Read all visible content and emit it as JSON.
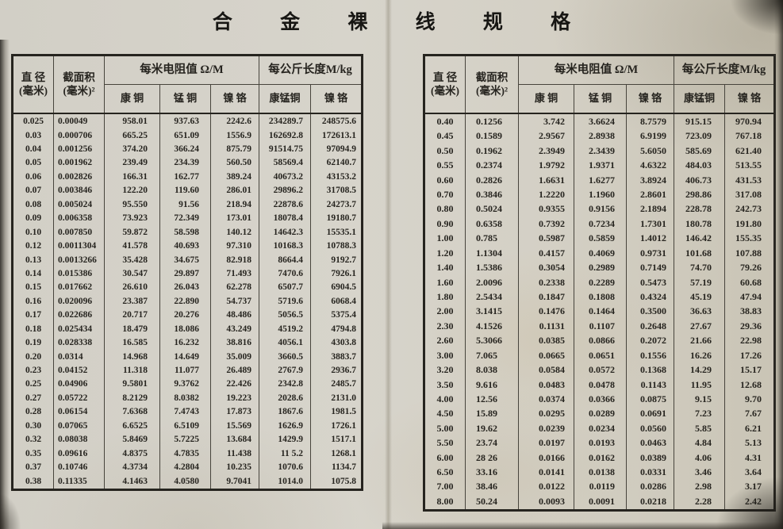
{
  "page_title": "合 金 裸 线 规 格",
  "table_header": {
    "diameter_line1": "直 径",
    "diameter_line2": "(毫米)",
    "area_line1": "截面积",
    "area_line2": "(毫米)²",
    "resistance_group": "每米电阻值 Ω/M",
    "length_group": "每公斤长度M/kg",
    "col_constantan": "康 铜",
    "col_manganin": "锰 铜",
    "col_nichrome": "镍 铬",
    "col_constantan_manganin": "康锰铜",
    "col_nichrome2": "镍 铬"
  },
  "left_table": {
    "rows": [
      [
        "0.025",
        "0.00049",
        "958.01",
        "937.63",
        "2242.6",
        "234289.7",
        "248575.6"
      ],
      [
        "0.03",
        "0.000706",
        "665.25",
        "651.09",
        "1556.9",
        "162692.8",
        "172613.1"
      ],
      [
        "0.04",
        "0.001256",
        "374.20",
        "366.24",
        "875.79",
        "91514.75",
        "97094.9"
      ],
      [
        "0.05",
        "0.001962",
        "239.49",
        "234.39",
        "560.50",
        "58569.4",
        "62140.7"
      ],
      [
        "0.06",
        "0.002826",
        "166.31",
        "162.77",
        "389.24",
        "40673.2",
        "43153.2"
      ],
      [
        "0.07",
        "0.003846",
        "122.20",
        "119.60",
        "286.01",
        "29896.2",
        "31708.5"
      ],
      [
        "0.08",
        "0.005024",
        "95.550",
        "91.56",
        "218.94",
        "22878.6",
        "24273.7"
      ],
      [
        "0.09",
        "0.006358",
        "73.923",
        "72.349",
        "173.01",
        "18078.4",
        "19180.7"
      ],
      [
        "0.10",
        "0.007850",
        "59.872",
        "58.598",
        "140.12",
        "14642.3",
        "15535.1"
      ],
      [
        "0.12",
        "0.0011304",
        "41.578",
        "40.693",
        "97.310",
        "10168.3",
        "10788.3"
      ],
      [
        "0.13",
        "0.0013266",
        "35.428",
        "34.675",
        "82.918",
        "8664.4",
        "9192.7"
      ],
      [
        "0.14",
        "0.015386",
        "30.547",
        "29.897",
        "71.493",
        "7470.6",
        "7926.1"
      ],
      [
        "0.15",
        "0.017662",
        "26.610",
        "26.043",
        "62.278",
        "6507.7",
        "6904.5"
      ],
      [
        "0.16",
        "0.020096",
        "23.387",
        "22.890",
        "54.737",
        "5719.6",
        "6068.4"
      ],
      [
        "0.17",
        "0.022686",
        "20.717",
        "20.276",
        "48.486",
        "5056.5",
        "5375.4"
      ],
      [
        "0.18",
        "0.025434",
        "18.479",
        "18.086",
        "43.249",
        "4519.2",
        "4794.8"
      ],
      [
        "0.19",
        "0.028338",
        "16.585",
        "16.232",
        "38.816",
        "4056.1",
        "4303.8"
      ],
      [
        "0.20",
        "0.0314",
        "14.968",
        "14.649",
        "35.009",
        "3660.5",
        "3883.7"
      ],
      [
        "0.23",
        "0.04152",
        "11.318",
        "11.077",
        "26.489",
        "2767.9",
        "2936.7"
      ],
      [
        "0.25",
        "0.04906",
        "9.5801",
        "9.3762",
        "22.426",
        "2342.8",
        "2485.7"
      ],
      [
        "0.27",
        "0.05722",
        "8.2129",
        "8.0382",
        "19.223",
        "2028.6",
        "2131.0"
      ],
      [
        "0.28",
        "0.06154",
        "7.6368",
        "7.4743",
        "17.873",
        "1867.6",
        "1981.5"
      ],
      [
        "0.30",
        "0.07065",
        "6.6525",
        "6.5109",
        "15.569",
        "1626.9",
        "1726.1"
      ],
      [
        "0.32",
        "0.08038",
        "5.8469",
        "5.7225",
        "13.684",
        "1429.9",
        "1517.1"
      ],
      [
        "0.35",
        "0.09616",
        "4.8375",
        "4.7835",
        "11.438",
        "11 5.2",
        "1268.1"
      ],
      [
        "0.37",
        "0.10746",
        "4.3734",
        "4.2804",
        "10.235",
        "1070.6",
        "1134.7"
      ],
      [
        "0.38",
        "0.11335",
        "4.1463",
        "4.0580",
        "9.7041",
        "1014.0",
        "1075.8"
      ]
    ]
  },
  "right_table": {
    "rows": [
      [
        "0.40",
        "0.1256",
        "3.742",
        "3.6624",
        "8.7579",
        "915.15",
        "970.94"
      ],
      [
        "0.45",
        "0.1589",
        "2.9567",
        "2.8938",
        "6.9199",
        "723.09",
        "767.18"
      ],
      [
        "0.50",
        "0.1962",
        "2.3949",
        "2.3439",
        "5.6050",
        "585.69",
        "621.40"
      ],
      [
        "0.55",
        "0.2374",
        "1.9792",
        "1.9371",
        "4.6322",
        "484.03",
        "513.55"
      ],
      [
        "0.60",
        "0.2826",
        "1.6631",
        "1.6277",
        "3.8924",
        "406.73",
        "431.53"
      ],
      [
        "0.70",
        "0.3846",
        "1.2220",
        "1.1960",
        "2.8601",
        "298.86",
        "317.08"
      ],
      [
        "0.80",
        "0.5024",
        "0.9355",
        "0.9156",
        "2.1894",
        "228.78",
        "242.73"
      ],
      [
        "0.90",
        "0.6358",
        "0.7392",
        "0.7234",
        "1.7301",
        "180.78",
        "191.80"
      ],
      [
        "1.00",
        "0.785",
        "0.5987",
        "0.5859",
        "1.4012",
        "146.42",
        "155.35"
      ],
      [
        "1.20",
        "1.1304",
        "0.4157",
        "0.4069",
        "0.9731",
        "101.68",
        "107.88"
      ],
      [
        "1.40",
        "1.5386",
        "0.3054",
        "0.2989",
        "0.7149",
        "74.70",
        "79.26"
      ],
      [
        "1.60",
        "2.0096",
        "0.2338",
        "0.2289",
        "0.5473",
        "57.19",
        "60.68"
      ],
      [
        "1.80",
        "2.5434",
        "0.1847",
        "0.1808",
        "0.4324",
        "45.19",
        "47.94"
      ],
      [
        "2.00",
        "3.1415",
        "0.1476",
        "0.1464",
        "0.3500",
        "36.63",
        "38.83"
      ],
      [
        "2.30",
        "4.1526",
        "0.1131",
        "0.1107",
        "0.2648",
        "27.67",
        "29.36"
      ],
      [
        "2.60",
        "5.3066",
        "0.0385",
        "0.0866",
        "0.2072",
        "21.66",
        "22.98"
      ],
      [
        "3.00",
        "7.065",
        "0.0665",
        "0.0651",
        "0.1556",
        "16.26",
        "17.26"
      ],
      [
        "3.20",
        "8.038",
        "0.0584",
        "0.0572",
        "0.1368",
        "14.29",
        "15.17"
      ],
      [
        "3.50",
        "9.616",
        "0.0483",
        "0.0478",
        "0.1143",
        "11.95",
        "12.68"
      ],
      [
        "4.00",
        "12.56",
        "0.0374",
        "0.0366",
        "0.0875",
        "9.15",
        "9.70"
      ],
      [
        "4.50",
        "15.89",
        "0.0295",
        "0.0289",
        "0.0691",
        "7.23",
        "7.67"
      ],
      [
        "5.00",
        "19.62",
        "0.0239",
        "0.0234",
        "0.0560",
        "5.85",
        "6.21"
      ],
      [
        "5.50",
        "23.74",
        "0.0197",
        "0.0193",
        "0.0463",
        "4.84",
        "5.13"
      ],
      [
        "6.00",
        "28 26",
        "0.0166",
        "0.0162",
        "0.0389",
        "4.06",
        "4.31"
      ],
      [
        "6.50",
        "33.16",
        "0.0141",
        "0.0138",
        "0.0331",
        "3.46",
        "3.64"
      ],
      [
        "7.00",
        "38.46",
        "0.0122",
        "0.0119",
        "0.0286",
        "2.98",
        "3.17"
      ],
      [
        "8.00",
        "50.24",
        "0.0093",
        "0.0091",
        "0.0218",
        "2.28",
        "2.42"
      ]
    ]
  }
}
